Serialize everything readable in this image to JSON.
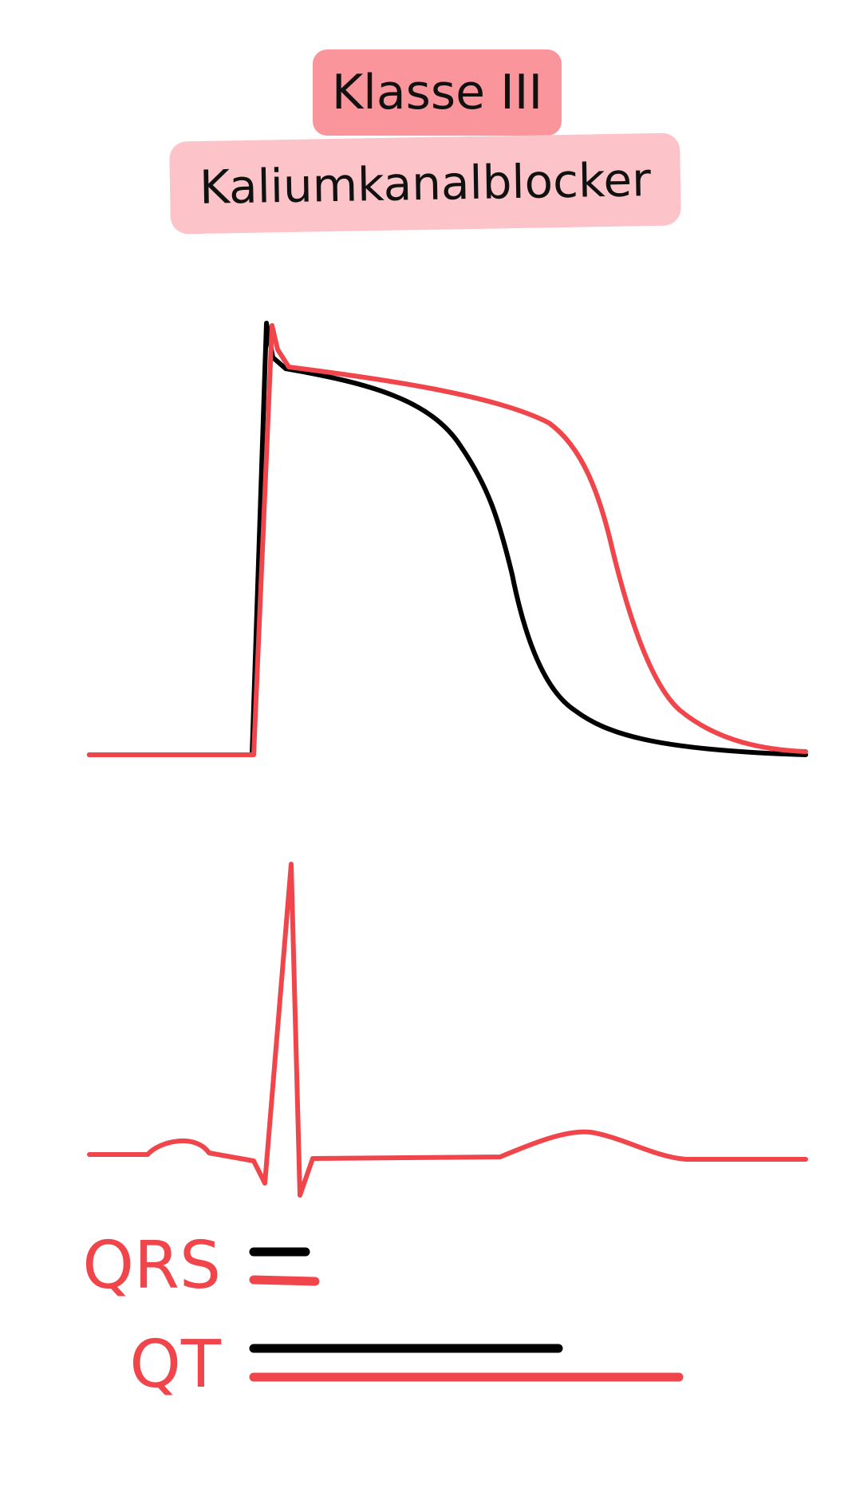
{
  "badges": {
    "class_label": "Klasse III",
    "title": "Kaliumkanalblocker"
  },
  "legend": {
    "qrs_label": "QRS",
    "qt_label": "QT"
  },
  "colors": {
    "red": "#f0454a",
    "black": "#000000",
    "badge_dark_pink": "#f9959b",
    "badge_light_pink": "#fcc4c8"
  }
}
